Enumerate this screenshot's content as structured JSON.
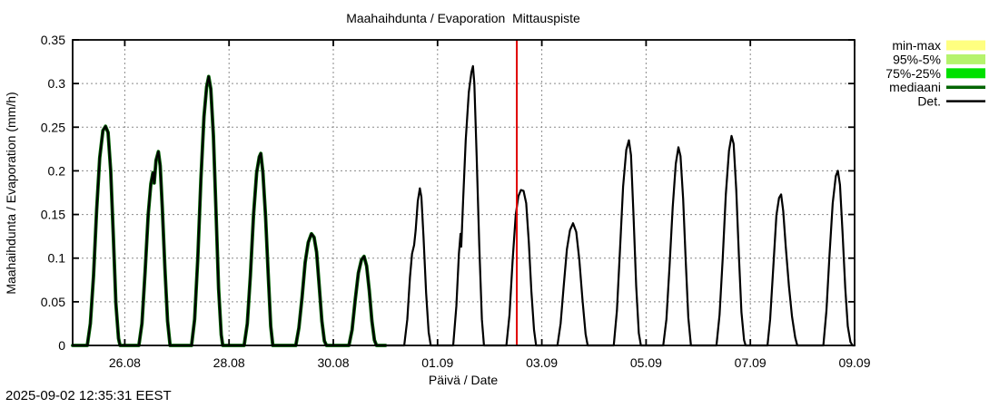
{
  "timestamp": "2025-09-02 12:35:31 EEST",
  "chart_data": {
    "type": "line",
    "title": "Maahaihdunta / Evaporation  Mittauspiste",
    "xlabel": "Päivä / Date",
    "ylabel": "Maahaihdunta / Evaporation (mm/h)",
    "ylim": [
      0,
      0.35
    ],
    "grid": true,
    "legend_position": "outside-top-right",
    "x_range_days": 15,
    "x_range_dates": [
      "25.08",
      "09.09"
    ],
    "x_ticks": [
      {
        "label": "26.08",
        "day": 1
      },
      {
        "label": "28.08",
        "day": 3
      },
      {
        "label": "30.08",
        "day": 5
      },
      {
        "label": "01.09",
        "day": 7
      },
      {
        "label": "03.09",
        "day": 9
      },
      {
        "label": "05.09",
        "day": 11
      },
      {
        "label": "07.09",
        "day": 13
      },
      {
        "label": "09.09",
        "day": 15
      }
    ],
    "y_ticks": [
      {
        "label": "0",
        "value": 0
      },
      {
        "label": "0.05",
        "value": 0.05
      },
      {
        "label": "0.1",
        "value": 0.1
      },
      {
        "label": "0.15",
        "value": 0.15
      },
      {
        "label": "0.2",
        "value": 0.2
      },
      {
        "label": "0.25",
        "value": 0.25
      },
      {
        "label": "0.3",
        "value": 0.3
      },
      {
        "label": "0.35",
        "value": 0.35
      }
    ],
    "now_marker": {
      "day": 8.52,
      "color": "#e00000",
      "time_label": "2025-09-02 12:35 EEST"
    },
    "legend": [
      {
        "label": "min-max",
        "swatch": "box",
        "color": "#ffff80"
      },
      {
        "label": "95%-5%",
        "swatch": "box",
        "color": "#b5f36d"
      },
      {
        "label": "75%-25%",
        "swatch": "box",
        "color": "#00e000"
      },
      {
        "label": "mediaani",
        "swatch": "line",
        "color": "#006400",
        "width": 3.5
      },
      {
        "label": "Det.",
        "swatch": "line",
        "color": "#000000",
        "width": 2.5
      }
    ],
    "series": [
      {
        "name": "mediaani",
        "color": "#006400",
        "line_width": 3.8,
        "day_span": [
          0,
          6
        ]
      },
      {
        "name": "Det.",
        "color": "#000000",
        "line_width": 2.2,
        "day_span": [
          0,
          15
        ]
      }
    ],
    "daily_curves": [
      {
        "date": "25.08",
        "peak_mm_h": 0.251,
        "points": [
          [
            0.28,
            0
          ],
          [
            0.34,
            0.025
          ],
          [
            0.4,
            0.08
          ],
          [
            0.46,
            0.155
          ],
          [
            0.52,
            0.215
          ],
          [
            0.58,
            0.246
          ],
          [
            0.63,
            0.251
          ],
          [
            0.68,
            0.244
          ],
          [
            0.73,
            0.2
          ],
          [
            0.78,
            0.125
          ],
          [
            0.83,
            0.048
          ],
          [
            0.88,
            0.008
          ],
          [
            0.91,
            0
          ]
        ]
      },
      {
        "date": "26.08",
        "peak_mm_h": 0.222,
        "points": [
          [
            0.27,
            0
          ],
          [
            0.33,
            0.025
          ],
          [
            0.39,
            0.085
          ],
          [
            0.45,
            0.15
          ],
          [
            0.5,
            0.185
          ],
          [
            0.54,
            0.198
          ],
          [
            0.565,
            0.186
          ],
          [
            0.6,
            0.212
          ],
          [
            0.645,
            0.222
          ],
          [
            0.68,
            0.206
          ],
          [
            0.72,
            0.158
          ],
          [
            0.77,
            0.088
          ],
          [
            0.82,
            0.028
          ],
          [
            0.87,
            0
          ]
        ]
      },
      {
        "date": "27.08",
        "peak_mm_h": 0.308,
        "points": [
          [
            0.28,
            0
          ],
          [
            0.34,
            0.03
          ],
          [
            0.4,
            0.1
          ],
          [
            0.46,
            0.19
          ],
          [
            0.52,
            0.262
          ],
          [
            0.57,
            0.296
          ],
          [
            0.61,
            0.308
          ],
          [
            0.65,
            0.294
          ],
          [
            0.7,
            0.24
          ],
          [
            0.75,
            0.155
          ],
          [
            0.8,
            0.065
          ],
          [
            0.85,
            0.012
          ],
          [
            0.88,
            0
          ]
        ]
      },
      {
        "date": "28.08",
        "peak_mm_h": 0.22,
        "points": [
          [
            0.29,
            0
          ],
          [
            0.35,
            0.025
          ],
          [
            0.41,
            0.08
          ],
          [
            0.47,
            0.15
          ],
          [
            0.53,
            0.198
          ],
          [
            0.58,
            0.216
          ],
          [
            0.61,
            0.22
          ],
          [
            0.65,
            0.198
          ],
          [
            0.7,
            0.148
          ],
          [
            0.75,
            0.082
          ],
          [
            0.8,
            0.022
          ],
          [
            0.84,
            0
          ]
        ]
      },
      {
        "date": "29.08",
        "peak_mm_h": 0.128,
        "points": [
          [
            0.28,
            0
          ],
          [
            0.34,
            0.02
          ],
          [
            0.4,
            0.055
          ],
          [
            0.46,
            0.095
          ],
          [
            0.52,
            0.118
          ],
          [
            0.58,
            0.128
          ],
          [
            0.63,
            0.124
          ],
          [
            0.68,
            0.107
          ],
          [
            0.73,
            0.068
          ],
          [
            0.78,
            0.028
          ],
          [
            0.83,
            0.005
          ],
          [
            0.87,
            0
          ]
        ]
      },
      {
        "date": "30.08",
        "peak_mm_h": 0.102,
        "points": [
          [
            0.3,
            0
          ],
          [
            0.36,
            0.018
          ],
          [
            0.42,
            0.052
          ],
          [
            0.48,
            0.083
          ],
          [
            0.54,
            0.098
          ],
          [
            0.59,
            0.102
          ],
          [
            0.64,
            0.091
          ],
          [
            0.69,
            0.063
          ],
          [
            0.74,
            0.028
          ],
          [
            0.79,
            0.006
          ],
          [
            0.83,
            0
          ]
        ]
      },
      {
        "date": "31.08",
        "peak_mm_h": 0.18,
        "points": [
          [
            0.36,
            0
          ],
          [
            0.42,
            0.03
          ],
          [
            0.47,
            0.078
          ],
          [
            0.51,
            0.105
          ],
          [
            0.55,
            0.115
          ],
          [
            0.58,
            0.132
          ],
          [
            0.62,
            0.165
          ],
          [
            0.66,
            0.18
          ],
          [
            0.69,
            0.17
          ],
          [
            0.73,
            0.125
          ],
          [
            0.78,
            0.06
          ],
          [
            0.83,
            0.015
          ],
          [
            0.87,
            0
          ]
        ]
      },
      {
        "date": "01.09",
        "peak_mm_h": 0.32,
        "points": [
          [
            0.3,
            0
          ],
          [
            0.36,
            0.045
          ],
          [
            0.41,
            0.105
          ],
          [
            0.44,
            0.128
          ],
          [
            0.455,
            0.113
          ],
          [
            0.49,
            0.165
          ],
          [
            0.54,
            0.235
          ],
          [
            0.6,
            0.29
          ],
          [
            0.65,
            0.313
          ],
          [
            0.68,
            0.32
          ],
          [
            0.705,
            0.3
          ],
          [
            0.75,
            0.215
          ],
          [
            0.8,
            0.115
          ],
          [
            0.85,
            0.03
          ],
          [
            0.89,
            0
          ]
        ]
      },
      {
        "date": "02.09",
        "peak_mm_h": 0.178,
        "points": [
          [
            0.32,
            0
          ],
          [
            0.38,
            0.035
          ],
          [
            0.44,
            0.098
          ],
          [
            0.5,
            0.15
          ],
          [
            0.55,
            0.171
          ],
          [
            0.6,
            0.178
          ],
          [
            0.65,
            0.177
          ],
          [
            0.7,
            0.163
          ],
          [
            0.75,
            0.118
          ],
          [
            0.8,
            0.062
          ],
          [
            0.85,
            0.018
          ],
          [
            0.89,
            0
          ]
        ]
      },
      {
        "date": "03.09",
        "peak_mm_h": 0.14,
        "points": [
          [
            0.3,
            0
          ],
          [
            0.36,
            0.025
          ],
          [
            0.42,
            0.068
          ],
          [
            0.48,
            0.11
          ],
          [
            0.54,
            0.132
          ],
          [
            0.6,
            0.14
          ],
          [
            0.66,
            0.13
          ],
          [
            0.72,
            0.098
          ],
          [
            0.78,
            0.052
          ],
          [
            0.84,
            0.013
          ],
          [
            0.88,
            0
          ]
        ]
      },
      {
        "date": "04.09",
        "peak_mm_h": 0.235,
        "points": [
          [
            0.38,
            0
          ],
          [
            0.44,
            0.04
          ],
          [
            0.5,
            0.11
          ],
          [
            0.56,
            0.182
          ],
          [
            0.62,
            0.224
          ],
          [
            0.67,
            0.235
          ],
          [
            0.71,
            0.218
          ],
          [
            0.76,
            0.148
          ],
          [
            0.81,
            0.068
          ],
          [
            0.86,
            0.014
          ],
          [
            0.9,
            0
          ]
        ]
      },
      {
        "date": "05.09",
        "peak_mm_h": 0.227,
        "points": [
          [
            0.33,
            0
          ],
          [
            0.39,
            0.03
          ],
          [
            0.45,
            0.09
          ],
          [
            0.51,
            0.158
          ],
          [
            0.57,
            0.208
          ],
          [
            0.62,
            0.227
          ],
          [
            0.66,
            0.217
          ],
          [
            0.71,
            0.168
          ],
          [
            0.76,
            0.098
          ],
          [
            0.81,
            0.032
          ],
          [
            0.86,
            0
          ]
        ]
      },
      {
        "date": "06.09",
        "peak_mm_h": 0.24,
        "points": [
          [
            0.35,
            0
          ],
          [
            0.41,
            0.035
          ],
          [
            0.47,
            0.1
          ],
          [
            0.53,
            0.173
          ],
          [
            0.59,
            0.223
          ],
          [
            0.64,
            0.24
          ],
          [
            0.68,
            0.231
          ],
          [
            0.73,
            0.178
          ],
          [
            0.78,
            0.103
          ],
          [
            0.83,
            0.038
          ],
          [
            0.88,
            0.006
          ],
          [
            0.91,
            0
          ]
        ]
      },
      {
        "date": "07.09",
        "peak_mm_h": 0.173,
        "points": [
          [
            0.33,
            0
          ],
          [
            0.38,
            0.03
          ],
          [
            0.44,
            0.09
          ],
          [
            0.5,
            0.149
          ],
          [
            0.55,
            0.169
          ],
          [
            0.59,
            0.173
          ],
          [
            0.63,
            0.154
          ],
          [
            0.68,
            0.113
          ],
          [
            0.74,
            0.068
          ],
          [
            0.8,
            0.033
          ],
          [
            0.86,
            0.009
          ],
          [
            0.9,
            0
          ]
        ]
      },
      {
        "date": "08.09",
        "peak_mm_h": 0.2,
        "points": [
          [
            0.4,
            0
          ],
          [
            0.46,
            0.04
          ],
          [
            0.52,
            0.104
          ],
          [
            0.58,
            0.163
          ],
          [
            0.64,
            0.194
          ],
          [
            0.68,
            0.2
          ],
          [
            0.72,
            0.184
          ],
          [
            0.77,
            0.128
          ],
          [
            0.82,
            0.066
          ],
          [
            0.87,
            0.022
          ],
          [
            0.92,
            0.004
          ],
          [
            0.96,
            0
          ]
        ]
      }
    ]
  }
}
